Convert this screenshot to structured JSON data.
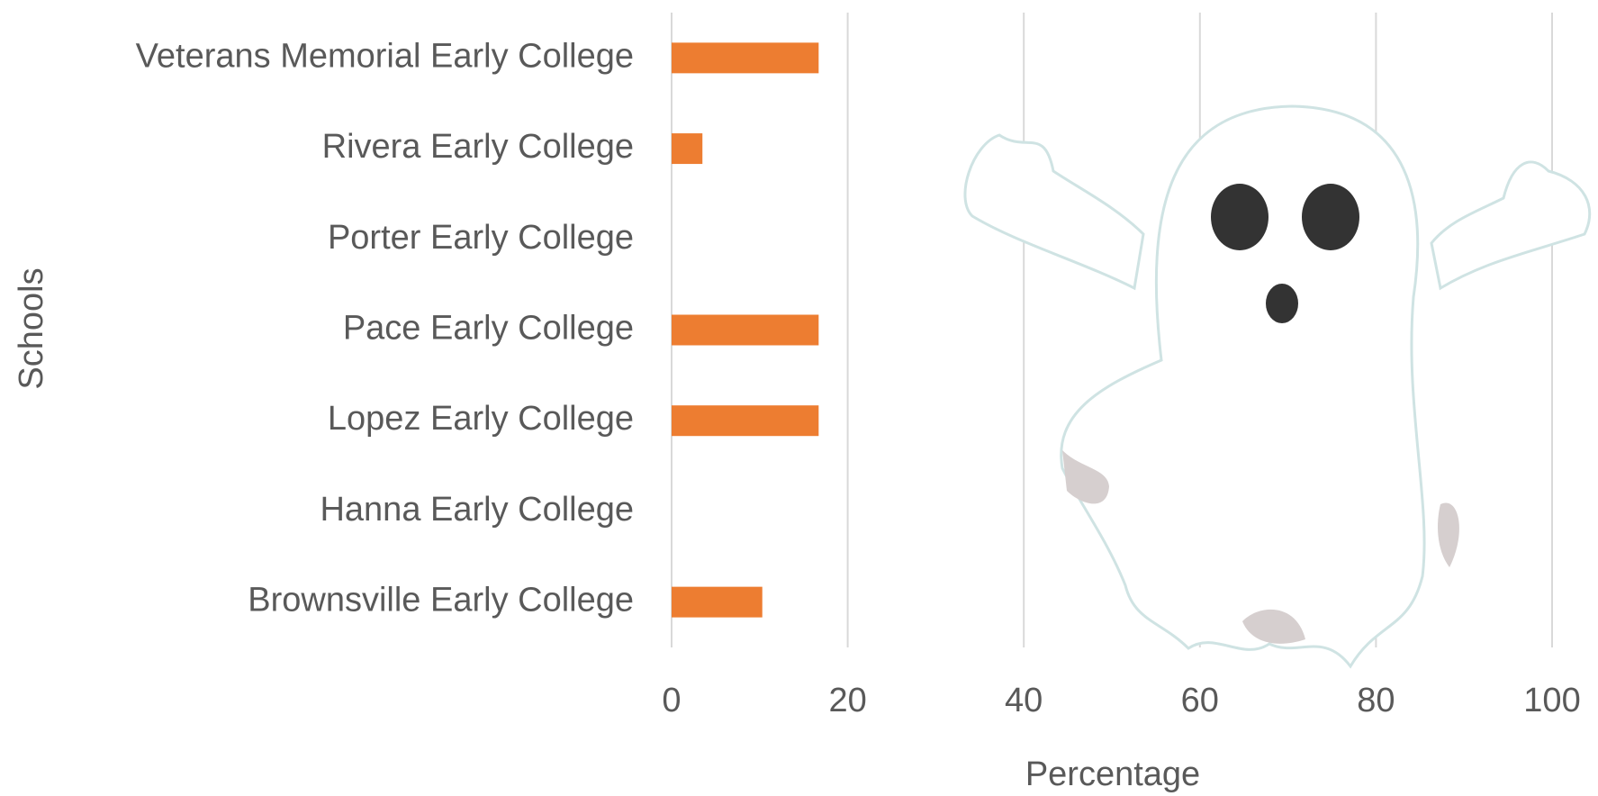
{
  "chart_data": {
    "type": "bar",
    "orientation": "horizontal",
    "categories": [
      "Veterans Memorial Early College",
      "Rivera Early College",
      "Porter Early College",
      "Pace Early College",
      "Lopez Early College",
      "Hanna Early College",
      "Brownsville Early College"
    ],
    "values": [
      16.7,
      3.5,
      0,
      16.7,
      16.7,
      0,
      10.3
    ],
    "color": "#ed7d31",
    "xlabel": "Percentage",
    "ylabel": "Schools",
    "xlim": [
      0,
      100
    ],
    "xticks": [
      0,
      20,
      40,
      60,
      80,
      100
    ],
    "grid": true
  }
}
